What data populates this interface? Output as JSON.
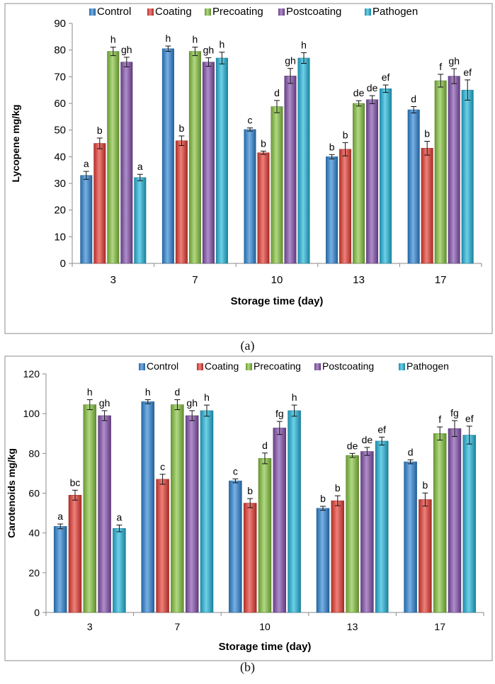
{
  "chart_data": [
    {
      "type": "bar",
      "panel_label": "(a)",
      "title": "",
      "xlabel": "Storage time (day)",
      "ylabel": "Lycopene mg/kg",
      "ylim": [
        0,
        90
      ],
      "yticks": [
        0,
        10,
        20,
        30,
        40,
        50,
        60,
        70,
        80,
        90
      ],
      "grid": false,
      "legend_position": "top",
      "categories": [
        "3",
        "7",
        "10",
        "13",
        "17"
      ],
      "series": [
        {
          "name": "Control",
          "color": "#2e86d6",
          "values": [
            33,
            80.5,
            50.2,
            40,
            57.6
          ],
          "errors": [
            1.5,
            1.0,
            0.6,
            0.8,
            1.2
          ],
          "letters": [
            "a",
            "h",
            "c",
            "b",
            "d"
          ]
        },
        {
          "name": "Coating",
          "color": "#e63c32",
          "values": [
            45,
            46,
            41.5,
            42.8,
            43.2
          ],
          "errors": [
            2.0,
            1.8,
            0.6,
            2.5,
            2.6
          ],
          "letters": [
            "b",
            "b",
            "b",
            "b",
            "b"
          ]
        },
        {
          "name": "Precoating",
          "color": "#86c43e",
          "values": [
            79.5,
            79.5,
            58.8,
            60,
            68.5
          ],
          "errors": [
            1.6,
            1.6,
            2.3,
            1.0,
            2.4
          ],
          "letters": [
            "h",
            "h",
            "d",
            "de",
            "f"
          ]
        },
        {
          "name": "Postcoating",
          "color": "#8451ae",
          "values": [
            75.5,
            75.5,
            70.3,
            61.4,
            70.2
          ],
          "errors": [
            1.8,
            1.6,
            2.8,
            1.5,
            2.8
          ],
          "letters": [
            "gh",
            "gh",
            "gh",
            "de",
            "gh"
          ]
        },
        {
          "name": "Pathogen",
          "color": "#22b6dc",
          "values": [
            32.2,
            77,
            77,
            65.5,
            65
          ],
          "errors": [
            1.2,
            2.2,
            2.0,
            1.4,
            3.8
          ],
          "letters": [
            "a",
            "h",
            "h",
            "ef",
            "ef"
          ]
        }
      ]
    },
    {
      "type": "bar",
      "panel_label": "(b)",
      "title": "",
      "xlabel": "Storage  time (day)",
      "ylabel": "Carotenoids mg/kg",
      "ylim": [
        0,
        120
      ],
      "yticks": [
        0,
        20,
        40,
        60,
        80,
        100,
        120
      ],
      "grid": false,
      "legend_position": "top",
      "categories": [
        "3",
        "7",
        "10",
        "13",
        "17"
      ],
      "series": [
        {
          "name": "Control",
          "color": "#2e86d6",
          "values": [
            43.3,
            106,
            66.2,
            52.4,
            75.8
          ],
          "errors": [
            1.2,
            1.0,
            1.0,
            1.0,
            1.0
          ],
          "letters": [
            "a",
            "h",
            "c",
            "b",
            "d"
          ]
        },
        {
          "name": "Coating",
          "color": "#e63c32",
          "values": [
            59,
            67,
            55,
            56.2,
            56.8
          ],
          "errors": [
            2.5,
            2.5,
            2.3,
            2.5,
            3.3
          ],
          "letters": [
            "bc",
            "c",
            "b",
            "b",
            "b"
          ]
        },
        {
          "name": "Precoating",
          "color": "#86c43e",
          "values": [
            104.5,
            104.5,
            77.5,
            79,
            90
          ],
          "errors": [
            2.5,
            2.5,
            2.7,
            1.0,
            3.3
          ],
          "letters": [
            "h",
            "d",
            "d",
            "de",
            "f"
          ]
        },
        {
          "name": "Postcoating",
          "color": "#8451ae",
          "values": [
            99,
            99,
            92.8,
            81,
            92.5
          ],
          "errors": [
            2.5,
            2.5,
            3.3,
            2.0,
            4.0
          ],
          "letters": [
            "gh",
            "gh",
            "fg",
            "de",
            "fg"
          ]
        },
        {
          "name": "Pathogen",
          "color": "#22b6dc",
          "values": [
            42.3,
            101.5,
            101.5,
            86.2,
            89.2
          ],
          "errors": [
            1.7,
            2.8,
            2.8,
            2.0,
            4.5
          ],
          "letters": [
            "a",
            "h",
            "h",
            "ef",
            "ef"
          ]
        }
      ]
    }
  ]
}
